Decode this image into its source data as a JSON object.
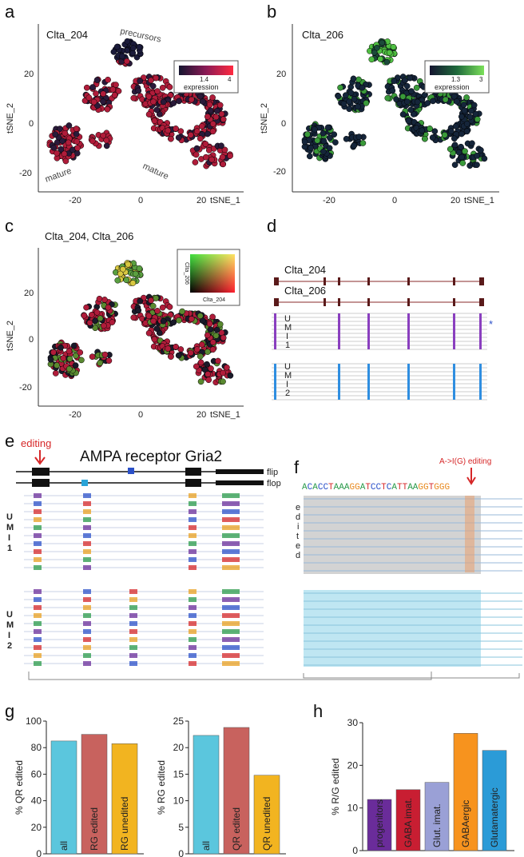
{
  "panels": {
    "a": {
      "letter": "a",
      "title": "Clta_204",
      "legend_tick": "1.4",
      "legend_max": "4",
      "legend_label": "expression",
      "ann_top": "precursors",
      "ann_left": "mature",
      "ann_right": "mature",
      "xticks": [
        "-20",
        "0",
        "20"
      ],
      "xlabel": "tSNE_1",
      "yticks": [
        "20",
        "0",
        "-20"
      ],
      "ylabel": "tSNE_2",
      "colors": {
        "lo": "#151530",
        "hi": "#e0203a"
      }
    },
    "b": {
      "letter": "b",
      "title": "Clta_206",
      "legend_tick": "1.3",
      "legend_max": "3",
      "legend_label": "expression",
      "xticks": [
        "-20",
        "0",
        "20"
      ],
      "xlabel": "tSNE_1",
      "yticks": [
        "20",
        "0",
        "-20"
      ],
      "ylabel": "tSNE_2",
      "colors": {
        "lo": "#151530",
        "hi": "#5fd14a"
      }
    },
    "c": {
      "letter": "c",
      "title": "Clta_204, Clta_206",
      "legend_x": "Clta_204",
      "legend_y": "Clta_206",
      "xticks": [
        "-20",
        "0",
        "20"
      ],
      "xlabel": "tSNE_1",
      "yticks": [
        "20",
        "0",
        "-20"
      ],
      "ylabel": "tSNE_2"
    },
    "d": {
      "letter": "d",
      "iso1": "Clta_204",
      "iso2": "Clta_206",
      "umi1": [
        "U",
        "M",
        "I",
        "1"
      ],
      "umi2": [
        "U",
        "M",
        "I",
        "2"
      ],
      "star": "*"
    },
    "e": {
      "letter": "e",
      "editing": "editing",
      "title": "AMPA receptor Gria2",
      "flip": "flip",
      "flop": "flop",
      "umi1": [
        "U",
        "M",
        "I",
        "1"
      ],
      "umi2": [
        "U",
        "M",
        "I",
        "2"
      ]
    },
    "f": {
      "letter": "f",
      "editing": "A->I(G) editing",
      "sequence": "ACACCTAAAGGATCCTCATTAAGGTGGG",
      "edited": [
        "e",
        "d",
        "i",
        "t",
        "e",
        "d"
      ]
    },
    "g": {
      "letter": "g"
    },
    "h": {
      "letter": "h"
    }
  },
  "chart_data": [
    {
      "type": "bar",
      "panel": "g",
      "categories": [
        "all",
        "RG edited",
        "RG unedited"
      ],
      "values": [
        85,
        90,
        83
      ],
      "colors": [
        "#5bc6dd",
        "#c8625e",
        "#f2b420"
      ],
      "ylabel": "% QR edited",
      "ylim": [
        0,
        100
      ],
      "yticks": [
        "0",
        "20",
        "40",
        "60",
        "80",
        "100"
      ],
      "grid": false
    },
    {
      "type": "bar",
      "panel": "g",
      "categories": [
        "all",
        "QR edited",
        "QR unedited"
      ],
      "values": [
        22.3,
        23.8,
        14.8
      ],
      "colors": [
        "#5bc6dd",
        "#c8625e",
        "#f2b420"
      ],
      "ylabel": "% RG edited",
      "ylim": [
        0,
        25
      ],
      "yticks": [
        "0",
        "5",
        "10",
        "15",
        "20",
        "25"
      ],
      "grid": false
    },
    {
      "type": "bar",
      "panel": "h",
      "categories": [
        "progenitors",
        "GABA imat.",
        "Glut. imat.",
        "GABAergic",
        "Glutamatergic"
      ],
      "values": [
        12,
        14.3,
        16,
        27.5,
        23.5
      ],
      "colors": [
        "#6a2c9a",
        "#c81e32",
        "#9aa0d6",
        "#f7931e",
        "#2b9bd7"
      ],
      "ylabel": "% R/G edited",
      "ylim": [
        0,
        30
      ],
      "yticks": [
        "0",
        "10",
        "20",
        "30"
      ],
      "grid": false
    }
  ]
}
